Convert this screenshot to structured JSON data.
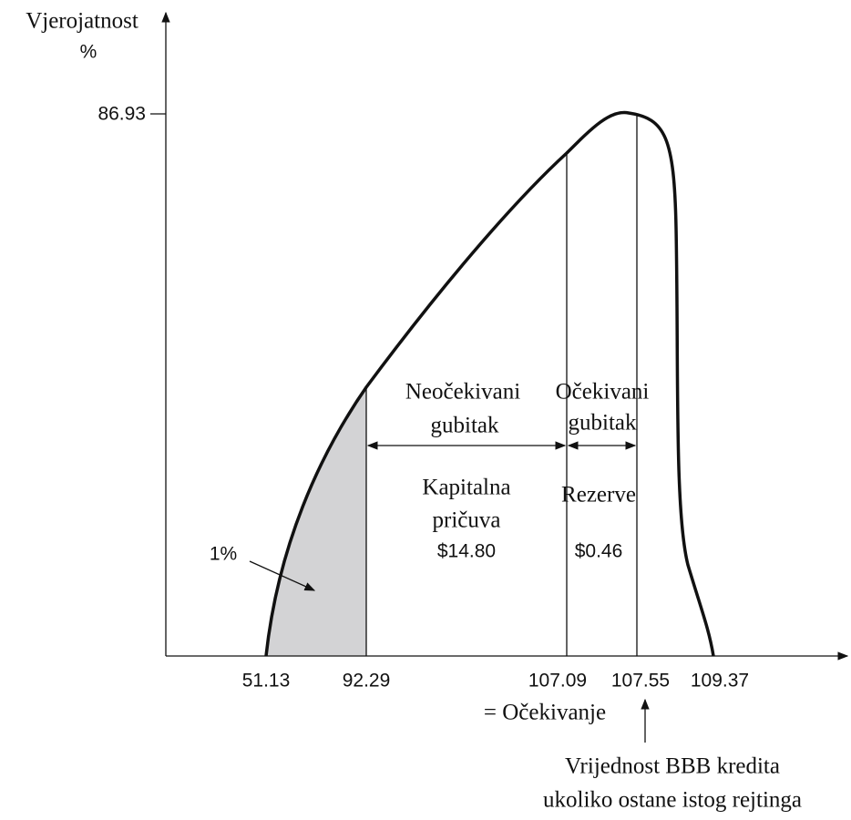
{
  "y_axis": {
    "label": "Vjerojatnost",
    "unit": "%",
    "tick": "86.93"
  },
  "x_ticks": [
    "51.13",
    "92.29",
    "107.09",
    "107.55",
    "109.37"
  ],
  "expected_label": "= Očekivanje",
  "tail_label": "1%",
  "unexpected_loss": [
    "Neočekivani",
    "gubitak"
  ],
  "expected_loss": [
    "Očekivani",
    "gubitak"
  ],
  "capital": [
    "Kapitalna",
    "pričuva",
    "$14.80"
  ],
  "reserves": [
    "Rezerve",
    "$0.46"
  ],
  "note": [
    "Vrijednost BBB kredita",
    "ukoliko ostane istog rejtinga"
  ]
}
